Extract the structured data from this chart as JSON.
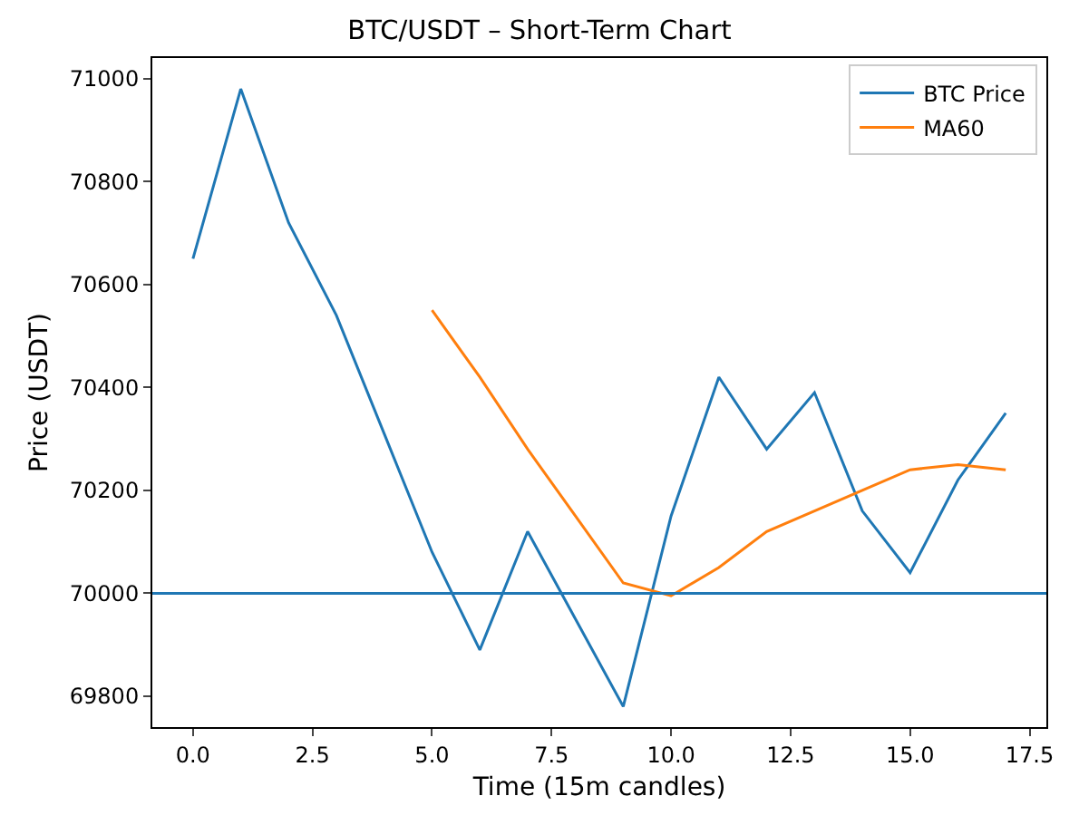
{
  "chart_data": {
    "type": "line",
    "title": "BTC/USDT – Short-Term Chart",
    "xlabel": "Time (15m candles)",
    "ylabel": "Price (USDT)",
    "series": [
      {
        "name": "BTC Price",
        "color": "#1f77b4",
        "x": [
          0,
          1,
          2,
          3,
          4,
          5,
          6,
          7,
          8,
          9,
          10,
          11,
          12,
          13,
          14,
          15,
          16,
          17
        ],
        "values": [
          70650,
          70980,
          70720,
          70540,
          70310,
          70080,
          69890,
          70120,
          69950,
          69780,
          70150,
          70420,
          70280,
          70390,
          70160,
          70040,
          70220,
          70350
        ]
      },
      {
        "name": "MA60",
        "color": "#ff7f0e",
        "x": [
          5,
          6,
          7,
          8,
          9,
          10,
          11,
          12,
          13,
          14,
          15,
          16,
          17
        ],
        "values": [
          70550,
          70420,
          70280,
          70150,
          70020,
          69995,
          70050,
          70120,
          70160,
          70200,
          70240,
          70250,
          70240
        ]
      }
    ],
    "ref_lines": [
      {
        "axis": "y",
        "value": 70000,
        "color": "#1f77b4",
        "line_style": "solid"
      }
    ],
    "xlim": [
      -0.85,
      17.85
    ],
    "xticks": [
      {
        "value": 0,
        "label": "0.0"
      },
      {
        "value": 2.5,
        "label": "2.5"
      },
      {
        "value": 5,
        "label": "5.0"
      },
      {
        "value": 7.5,
        "label": "7.5"
      },
      {
        "value": 10,
        "label": "10.0"
      },
      {
        "value": 12.5,
        "label": "12.5"
      },
      {
        "value": 15,
        "label": "15.0"
      },
      {
        "value": 17.5,
        "label": "17.5"
      }
    ],
    "ylim": [
      69740,
      71040
    ],
    "yticks": [
      69800,
      70000,
      70200,
      70400,
      70600,
      70800,
      71000
    ],
    "grid": false,
    "legend": "top right",
    "marker": "none",
    "line_style": "solid"
  }
}
